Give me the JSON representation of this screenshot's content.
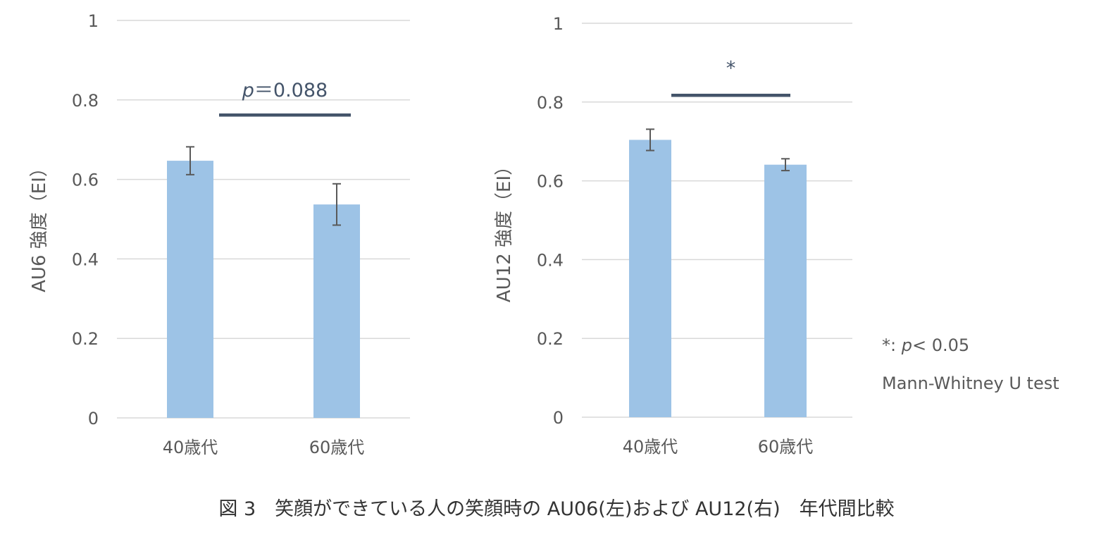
{
  "chart_data": [
    {
      "type": "bar",
      "categories": [
        "40歳代",
        "60歳代"
      ],
      "values": [
        0.647,
        0.537
      ],
      "error": [
        0.035,
        0.052
      ],
      "ylabel": "AU6 強度（EI）",
      "ylim": [
        0,
        1
      ],
      "yticks": [
        "0",
        "0.2",
        "0.4",
        "0.6",
        "0.8",
        "1"
      ],
      "ytick_values": [
        0,
        0.2,
        0.4,
        0.6,
        0.8,
        1
      ],
      "grid": true,
      "significance": {
        "p_italic": "p",
        "text": "＝0.088",
        "bar_level": 0.762,
        "between": [
          0,
          1
        ]
      }
    },
    {
      "type": "bar",
      "categories": [
        "40歳代",
        "60歳代"
      ],
      "values": [
        0.704,
        0.641
      ],
      "error": [
        0.027,
        0.015
      ],
      "ylabel": "AU12 強度（EI）",
      "ylim": [
        0,
        1
      ],
      "yticks": [
        "0",
        "0.2",
        "0.4",
        "0.6",
        "0.8",
        "1"
      ],
      "ytick_values": [
        0,
        0.2,
        0.4,
        0.6,
        0.8,
        1
      ],
      "grid": true,
      "significance": {
        "p_italic": "",
        "text": "*",
        "bar_level": 0.817,
        "between": [
          0,
          1
        ]
      }
    }
  ],
  "notes": {
    "sig_symbol": "*: ",
    "sig_p": "p",
    "sig_rest": "< 0.05",
    "test": "Mann-Whitney U test"
  },
  "caption": "図 3　笑顔ができている人の笑顔時の AU06(左)および AU12(右)　年代間比較",
  "colors": {
    "bar": "#9DC3E6",
    "grid": "#D9D9D9",
    "error": "#595959",
    "sigbar": "#44546A",
    "text": "#595959"
  }
}
